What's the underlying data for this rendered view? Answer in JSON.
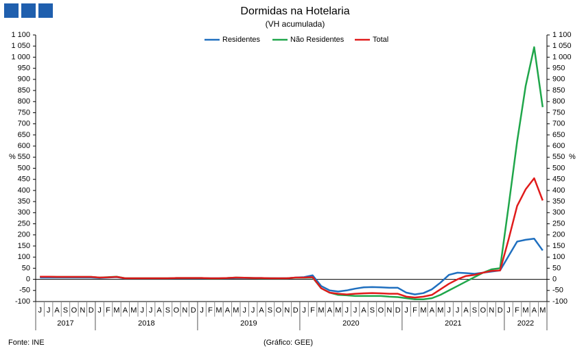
{
  "chart_data": {
    "type": "line",
    "title": "Dormidas na Hotelaria",
    "subtitle": "(VH acumulada)",
    "y_label": "%",
    "y2_label": "%",
    "source": "Fonte: INE",
    "credit": "(Gráfico: GEE)",
    "categories": [
      "J",
      "J",
      "A",
      "S",
      "O",
      "N",
      "D",
      "J",
      "F",
      "M",
      "A",
      "M",
      "J",
      "J",
      "A",
      "S",
      "O",
      "N",
      "D",
      "J",
      "F",
      "M",
      "A",
      "M",
      "J",
      "J",
      "A",
      "S",
      "O",
      "N",
      "D",
      "J",
      "F",
      "M",
      "A",
      "M",
      "J",
      "J",
      "A",
      "S",
      "O",
      "N",
      "D",
      "J",
      "F",
      "M",
      "A",
      "M",
      "J",
      "J",
      "A",
      "S",
      "O",
      "N",
      "D",
      "J",
      "F",
      "M",
      "A",
      "M"
    ],
    "year_labels": [
      "2017",
      "2018",
      "2019",
      "2020",
      "2021",
      "2022"
    ],
    "series": [
      {
        "name": "Residentes",
        "color": "#1f6fbf",
        "values": [
          8,
          8,
          8,
          8,
          8,
          8,
          8,
          6,
          8,
          10,
          4,
          4,
          4,
          4,
          4,
          4,
          5,
          5,
          5,
          5,
          5,
          5,
          5,
          6,
          6,
          6,
          6,
          5,
          5,
          5,
          8,
          10,
          18,
          -30,
          -50,
          -55,
          -50,
          -42,
          -36,
          -35,
          -36,
          -38,
          -38,
          -60,
          -68,
          -62,
          -45,
          -15,
          20,
          30,
          28,
          25,
          30,
          35,
          40,
          105,
          170,
          178,
          183,
          130
        ]
      },
      {
        "name": "Não Residentes",
        "color": "#1fa64a",
        "values": [
          12,
          12,
          11,
          11,
          11,
          11,
          11,
          8,
          10,
          12,
          5,
          5,
          5,
          5,
          5,
          5,
          6,
          6,
          6,
          6,
          4,
          4,
          6,
          8,
          7,
          6,
          5,
          5,
          4,
          5,
          7,
          7,
          8,
          -40,
          -60,
          -70,
          -72,
          -75,
          -75,
          -75,
          -75,
          -78,
          -80,
          -85,
          -90,
          -90,
          -85,
          -70,
          -50,
          -30,
          -10,
          10,
          30,
          45,
          50,
          330,
          620,
          870,
          1045,
          775
        ]
      },
      {
        "name": "Total",
        "color": "#e01b1b",
        "values": [
          12,
          12,
          11,
          11,
          11,
          11,
          11,
          8,
          9,
          11,
          5,
          5,
          5,
          5,
          5,
          5,
          6,
          6,
          6,
          6,
          5,
          5,
          6,
          8,
          7,
          6,
          6,
          5,
          5,
          5,
          8,
          8,
          10,
          -40,
          -60,
          -65,
          -68,
          -65,
          -63,
          -62,
          -63,
          -65,
          -65,
          -78,
          -82,
          -78,
          -70,
          -45,
          -20,
          0,
          15,
          20,
          30,
          38,
          40,
          180,
          330,
          405,
          455,
          355
        ]
      }
    ],
    "ylim": [
      -100,
      1100
    ],
    "yticks": [
      -100,
      -50,
      0,
      50,
      100,
      150,
      200,
      250,
      300,
      350,
      400,
      450,
      500,
      550,
      600,
      650,
      700,
      750,
      800,
      850,
      900,
      950,
      {
        "value": 1000,
        "label": "1 000"
      },
      {
        "value": 1050,
        "label": "1 050"
      },
      {
        "value": 1100,
        "label": "1 100"
      }
    ],
    "y2lim": [
      -100,
      1100
    ],
    "y2ticks": [
      -100,
      -50,
      0,
      50,
      100,
      150,
      200,
      250,
      300,
      350,
      400,
      450,
      500,
      550,
      600,
      650,
      700,
      750,
      800,
      850,
      900,
      950,
      {
        "value": 1000,
        "label": "1 000"
      },
      {
        "value": 1050,
        "label": "1 050"
      },
      {
        "value": 1100,
        "label": "1 100"
      }
    ],
    "legend": "top"
  }
}
